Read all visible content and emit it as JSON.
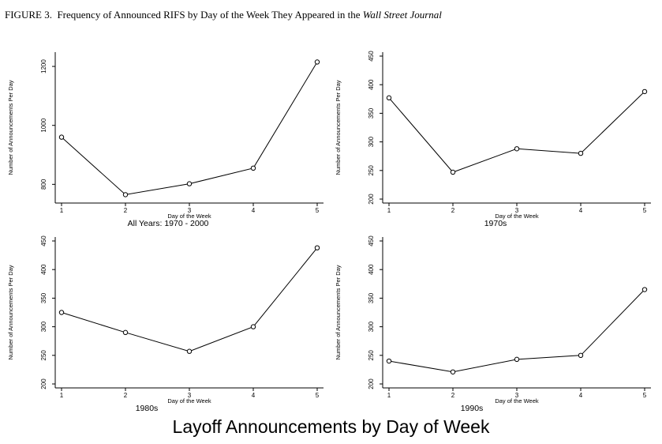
{
  "figure": {
    "title_prefix": "FIGURE 3.",
    "title_main": "Frequency of Announced RIFS by Day of the Week They Appeared in the",
    "title_italic": "Wall Street Journal",
    "caption": "Layoff Announcements by Day of Week"
  },
  "chart_data": [
    {
      "type": "line",
      "title": "All Years: 1970 - 2000",
      "xlabel": "Day of the Week",
      "ylabel": "Number of Announcements Per Day",
      "x": [
        1,
        2,
        3,
        4,
        5
      ],
      "y": [
        960,
        765,
        802,
        855,
        1215
      ],
      "xticks": [
        1,
        2,
        3,
        4,
        5
      ],
      "yticks": [
        800,
        1000,
        1200
      ],
      "ylim": [
        750,
        1235
      ]
    },
    {
      "type": "line",
      "title": "1970s",
      "xlabel": "Day of the Week",
      "ylabel": "Number of Announcements Per Day",
      "x": [
        1,
        2,
        3,
        4,
        5
      ],
      "y": [
        377,
        247,
        288,
        280,
        388
      ],
      "xticks": [
        1,
        2,
        3,
        4,
        5
      ],
      "yticks": [
        200,
        250,
        300,
        350,
        400,
        450
      ],
      "ylim": [
        200,
        450
      ]
    },
    {
      "type": "line",
      "title": "1980s",
      "xlabel": "Day of the Week",
      "ylabel": "Number of Announcements Per Day",
      "x": [
        1,
        2,
        3,
        4,
        5
      ],
      "y": [
        325,
        290,
        257,
        300,
        438
      ],
      "xticks": [
        1,
        2,
        3,
        4,
        5
      ],
      "yticks": [
        200,
        250,
        300,
        350,
        400,
        450
      ],
      "ylim": [
        200,
        450
      ]
    },
    {
      "type": "line",
      "title": "1990s",
      "xlabel": "Day of the Week",
      "ylabel": "Number of Announcements Per Day",
      "x": [
        1,
        2,
        3,
        4,
        5
      ],
      "y": [
        240,
        221,
        243,
        250,
        365
      ],
      "xticks": [
        1,
        2,
        3,
        4,
        5
      ],
      "yticks": [
        200,
        250,
        300,
        350,
        400,
        450
      ],
      "ylim": [
        200,
        450
      ]
    }
  ]
}
